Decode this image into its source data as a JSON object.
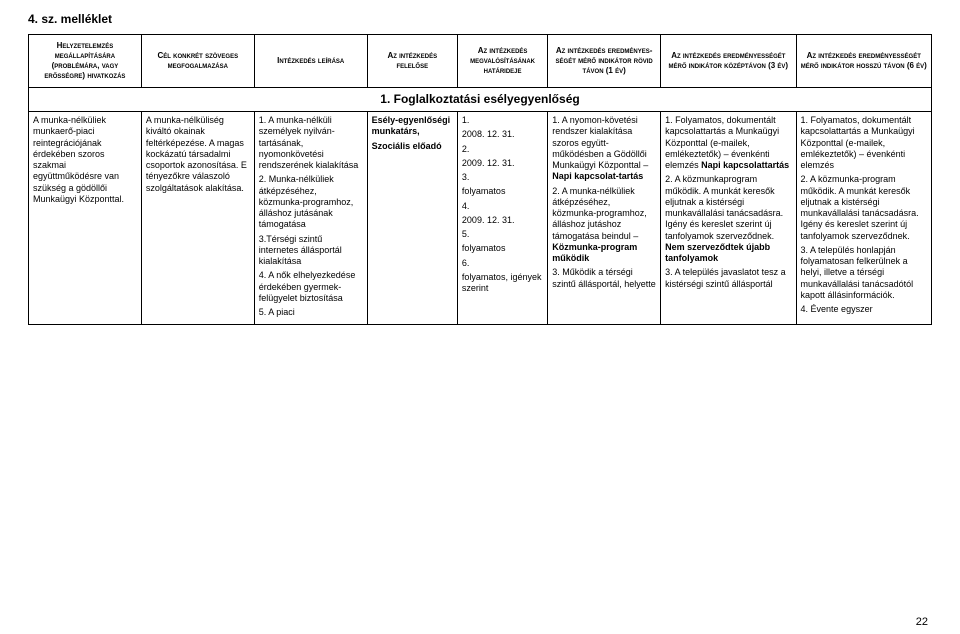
{
  "doc_title": "4. sz. melléklet",
  "headers": [
    "Helyzetelemzés megállapítására (problémára, vagy erősségre) hivatkozás",
    "Cél konkrét szöveges megfogalmazása",
    "Intézkedés leírása",
    "Az intézkedés felelőse",
    "Az intézkedés megvalósításának határideje",
    "Az intézkedés eredményes-ségét mérő indikátor rövid távon (1 év)",
    "Az intézkedés eredményességét mérő indikátor középtávon (3 év)",
    "Az intézkedés eredményességét mérő indikátor hosszú távon (6 év)"
  ],
  "section_title": "1. Foglalkoztatási esélyegyenlőség",
  "row": {
    "c0": "A munka-nélküliek munkaerő-piaci reintegrációjának érdekében szoros szakmai együttműködésre van szükség a gödöllői Munkaügyi Központtal.",
    "c1": "A munka-nélküliség kiváltó okainak feltérképezése. A magas kockázatú társadalmi csoportok azonosítása. E tényezőkre válaszoló szolgáltatások alakítása.",
    "c2_1": "1. A munka-nélküli személyek nyilván-tartásának, nyomonkövetési rendszerének kialakítása",
    "c2_2": "2. Munka-nélküliek átképzéséhez, közmunka-programhoz, álláshoz jutásának támogatása",
    "c2_3": "3.Térségi szintű internetes állásportál kialakítása",
    "c2_4": "4. A nők elhelyezkedése érdekében gyermek-felügyelet biztosítása",
    "c2_5": "5. A piaci",
    "c3_1a": "Esély-egyenlőségi munkatárs,",
    "c3_1b": "Szociális előadó",
    "c4_1": "1.",
    "c4_1d": "2008. 12. 31.",
    "c4_2": "2.",
    "c4_2d": "2009. 12. 31.",
    "c4_3": "3.",
    "c4_3d": "folyamatos",
    "c4_4": "4.",
    "c4_4d": "2009. 12. 31.",
    "c4_5": "5.",
    "c4_5d": "folyamatos",
    "c4_6": "6.",
    "c4_6d": "folyamatos, igények szerint",
    "c5_1a": "1. A nyomon-követési rendszer kialakítása szoros együtt-működésben a Gödöllői Munkaügyi Központtal – ",
    "c5_1b": "Napi kapcsolat-tartás",
    "c5_2a": "2. A munka-nélküliek átképzéséhez, közmunka-programhoz, álláshoz jutáshoz támogatása beindul – ",
    "c5_2b": "Közmunka-program működik",
    "c5_3": "3. Működik a térségi szintű állásportál, helyette",
    "c6_1a": "1. Folyamatos, dokumentált kapcsolattartás a Munkaügyi Központtal (e-mailek, emlékeztetők) – évenkénti elemzés ",
    "c6_1b": "Napi kapcsolattartás",
    "c6_2a": "2. A közmunkaprogram működik. A munkát keresők eljutnak a kistérségi munkavállalási tanácsadásra. Igény és kereslet szerint új tanfolyamok szerveződnek. ",
    "c6_2b": "Nem szerveződtek újabb tanfolyamok",
    "c6_3": "3. A település javaslatot tesz a kistérségi szintű állásportál",
    "c7_1": "1. Folyamatos, dokumentált kapcsolattartás a Munkaügyi Központtal (e-mailek, emlékeztetők) – évenkénti elemzés",
    "c7_2": "2. A közmunka-program működik. A munkát keresők eljutnak a kistérségi munkavállalási tanácsadásra. Igény és kereslet szerint új tanfolyamok szerveződnek.",
    "c7_3": "3. A település honlapján folyamatosan felkerülnek a helyi, illetve a térségi munkavállalási tanácsadótól kapott állásinformációk.",
    "c7_4": "4. Évente egyszer"
  },
  "page_number": "22",
  "colors": {
    "background": "#ffffff",
    "border": "#000000",
    "text": "#000000"
  }
}
